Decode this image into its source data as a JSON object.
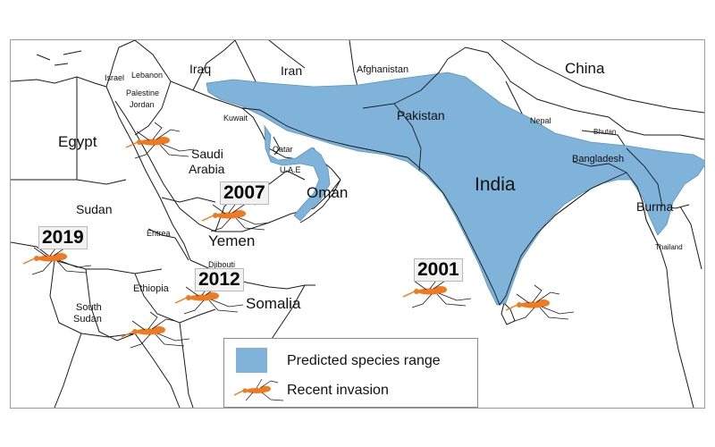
{
  "map": {
    "countries": {
      "china": "China",
      "iraq": "Iraq",
      "iran": "Iran",
      "afghanistan": "Afghanistan",
      "israel": "Israel",
      "lebanon": "Lebanon",
      "palestine": "Palestine",
      "jordan": "Jordan",
      "egypt": "Egypt",
      "kuwait": "Kuwait",
      "pakistan": "Pakistan",
      "nepal": "Nepal",
      "bhutan": "Bhutan",
      "saudi_arabia_1": "Saudi",
      "saudi_arabia_2": "Arabia",
      "qatar": "Qatar",
      "uae": "U.A.E",
      "bangladesh": "Bangladesh",
      "india": "India",
      "oman": "Oman",
      "sudan": "Sudan",
      "burma": "Burma",
      "eritrea": "Eritrea",
      "yemen": "Yemen",
      "djibouti": "Djibouti",
      "thailand": "Thailand",
      "ethiopia": "Ethiopia",
      "somalia": "Somalia",
      "south_sudan_1": "South",
      "south_sudan_2": "Sudan"
    },
    "invasion_years": {
      "egypt_region": "",
      "yemen": "2007",
      "sudan_west": "2019",
      "somalia": "2012",
      "sri_lanka": "2001"
    },
    "colors": {
      "range_fill": "#7fb3d9",
      "mosquito": "#f07a1f",
      "border": "#1a1a1a"
    }
  },
  "legend": {
    "range_label": "Predicted species range",
    "invasion_label": "Recent invasion",
    "range_icon": "blue-swatch",
    "invasion_icon": "mosquito-icon"
  }
}
